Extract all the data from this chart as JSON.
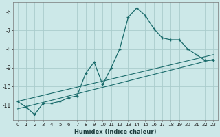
{
  "xlabel": "Humidex (Indice chaleur)",
  "background_color": "#cce8e8",
  "grid_color": "#aacccc",
  "line_color": "#1a6b6b",
  "xlim": [
    -0.5,
    23.5
  ],
  "ylim": [
    -11.8,
    -5.5
  ],
  "yticks": [
    -11,
    -10,
    -9,
    -8,
    -7,
    -6
  ],
  "xticks": [
    0,
    1,
    2,
    3,
    4,
    5,
    6,
    7,
    8,
    9,
    10,
    11,
    12,
    13,
    14,
    15,
    16,
    17,
    18,
    19,
    20,
    21,
    22,
    23
  ],
  "line1_x": [
    0,
    1,
    2,
    3,
    4,
    5,
    6,
    7,
    8,
    9,
    10,
    11,
    12,
    13,
    14,
    15,
    16,
    17,
    18,
    19,
    20,
    21,
    22,
    23
  ],
  "line1_y": [
    -10.8,
    -11.1,
    -11.5,
    -10.9,
    -10.9,
    -10.8,
    -10.6,
    -10.5,
    -9.3,
    -8.7,
    -9.9,
    -9.0,
    -8.0,
    -6.3,
    -5.8,
    -6.2,
    -6.9,
    -7.4,
    -7.5,
    -7.5,
    -8.0,
    -8.3,
    -8.6,
    -8.6
  ],
  "line2_x": [
    0,
    23
  ],
  "line2_y": [
    -11.2,
    -8.55
  ],
  "line3_x": [
    0,
    23
  ],
  "line3_y": [
    -10.8,
    -8.3
  ],
  "xlabel_fontsize": 6.0,
  "tick_fontsize": 5.0
}
